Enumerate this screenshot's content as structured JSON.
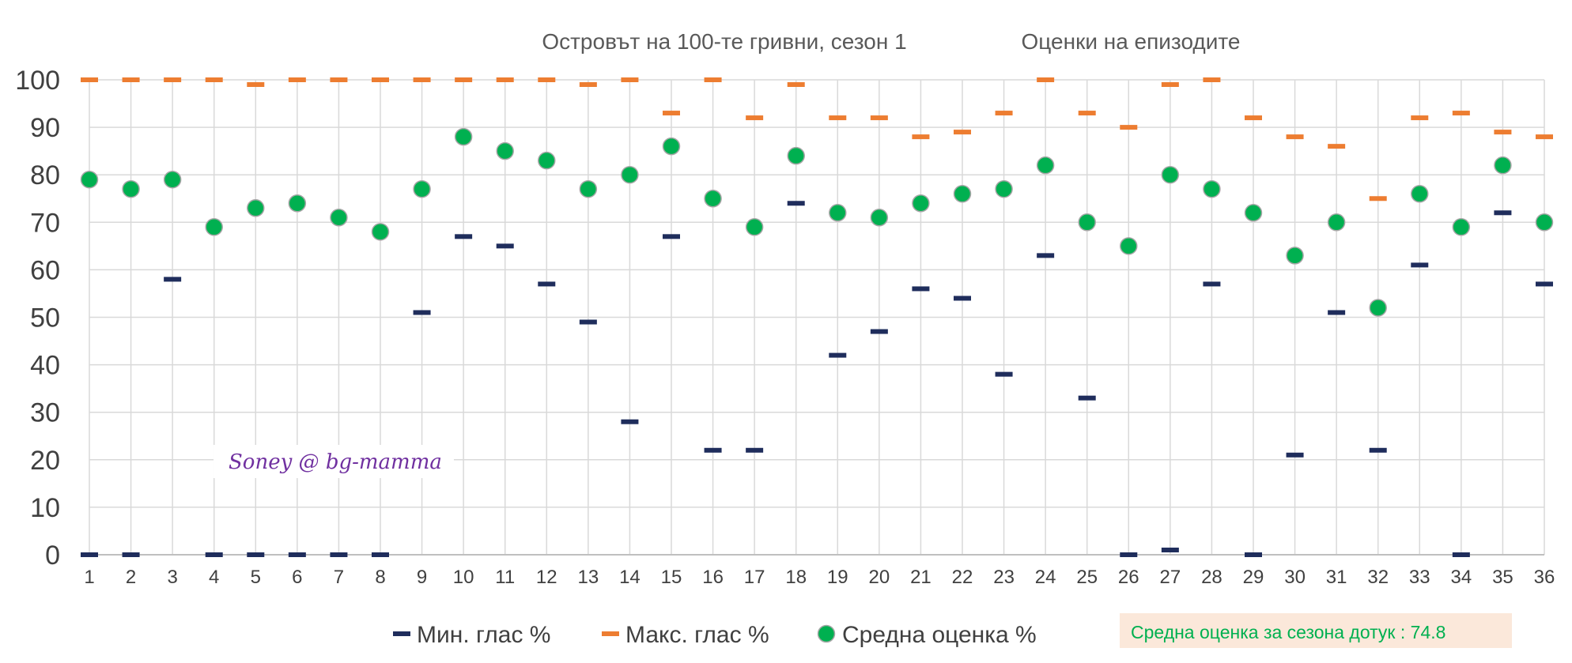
{
  "chart_data": {
    "type": "scatter",
    "title": "Островът на 100-те гривни, сезон 1",
    "subtitle": "Оценки на епизодите",
    "categories": [
      "1",
      "2",
      "3",
      "4",
      "5",
      "6",
      "7",
      "8",
      "9",
      "10",
      "11",
      "12",
      "13",
      "14",
      "15",
      "16",
      "17",
      "18",
      "19",
      "20",
      "21",
      "22",
      "23",
      "24",
      "25",
      "26",
      "27",
      "28",
      "29",
      "30",
      "31",
      "32",
      "33",
      "34",
      "35",
      "36"
    ],
    "ylim": [
      0,
      100
    ],
    "yticks": [
      "0",
      "10",
      "20",
      "30",
      "40",
      "50",
      "60",
      "70",
      "80",
      "90",
      "100"
    ],
    "grid": true,
    "legend_position": "bottom",
    "series": [
      {
        "name": "Мин. глас %",
        "marker": "dash",
        "color": "#1F2D5C",
        "values": [
          0,
          0,
          58,
          0,
          0,
          0,
          0,
          0,
          51,
          67,
          65,
          57,
          49,
          28,
          67,
          22,
          22,
          74,
          42,
          47,
          56,
          54,
          38,
          63,
          33,
          0,
          1,
          57,
          0,
          21,
          51,
          22,
          61,
          0,
          72,
          57
        ]
      },
      {
        "name": "Макс. глас %",
        "marker": "dash",
        "color": "#ED7D31",
        "values": [
          100,
          100,
          100,
          100,
          99,
          100,
          100,
          100,
          100,
          100,
          100,
          100,
          99,
          100,
          93,
          100,
          92,
          99,
          92,
          92,
          88,
          89,
          93,
          100,
          93,
          90,
          99,
          100,
          92,
          88,
          86,
          75,
          92,
          93,
          89,
          88
        ]
      },
      {
        "name": "Средна оценка %",
        "marker": "circle",
        "color": "#00B050",
        "values": [
          79,
          77,
          79,
          69,
          73,
          74,
          71,
          68,
          77,
          88,
          85,
          83,
          77,
          80,
          86,
          75,
          69,
          84,
          72,
          71,
          74,
          76,
          77,
          82,
          70,
          65,
          80,
          77,
          72,
          63,
          70,
          52,
          76,
          69,
          82,
          70
        ]
      }
    ],
    "watermark": "Soney @ bg-mamma",
    "summary": "Средна оценка за сезона дотук :  74.8"
  }
}
